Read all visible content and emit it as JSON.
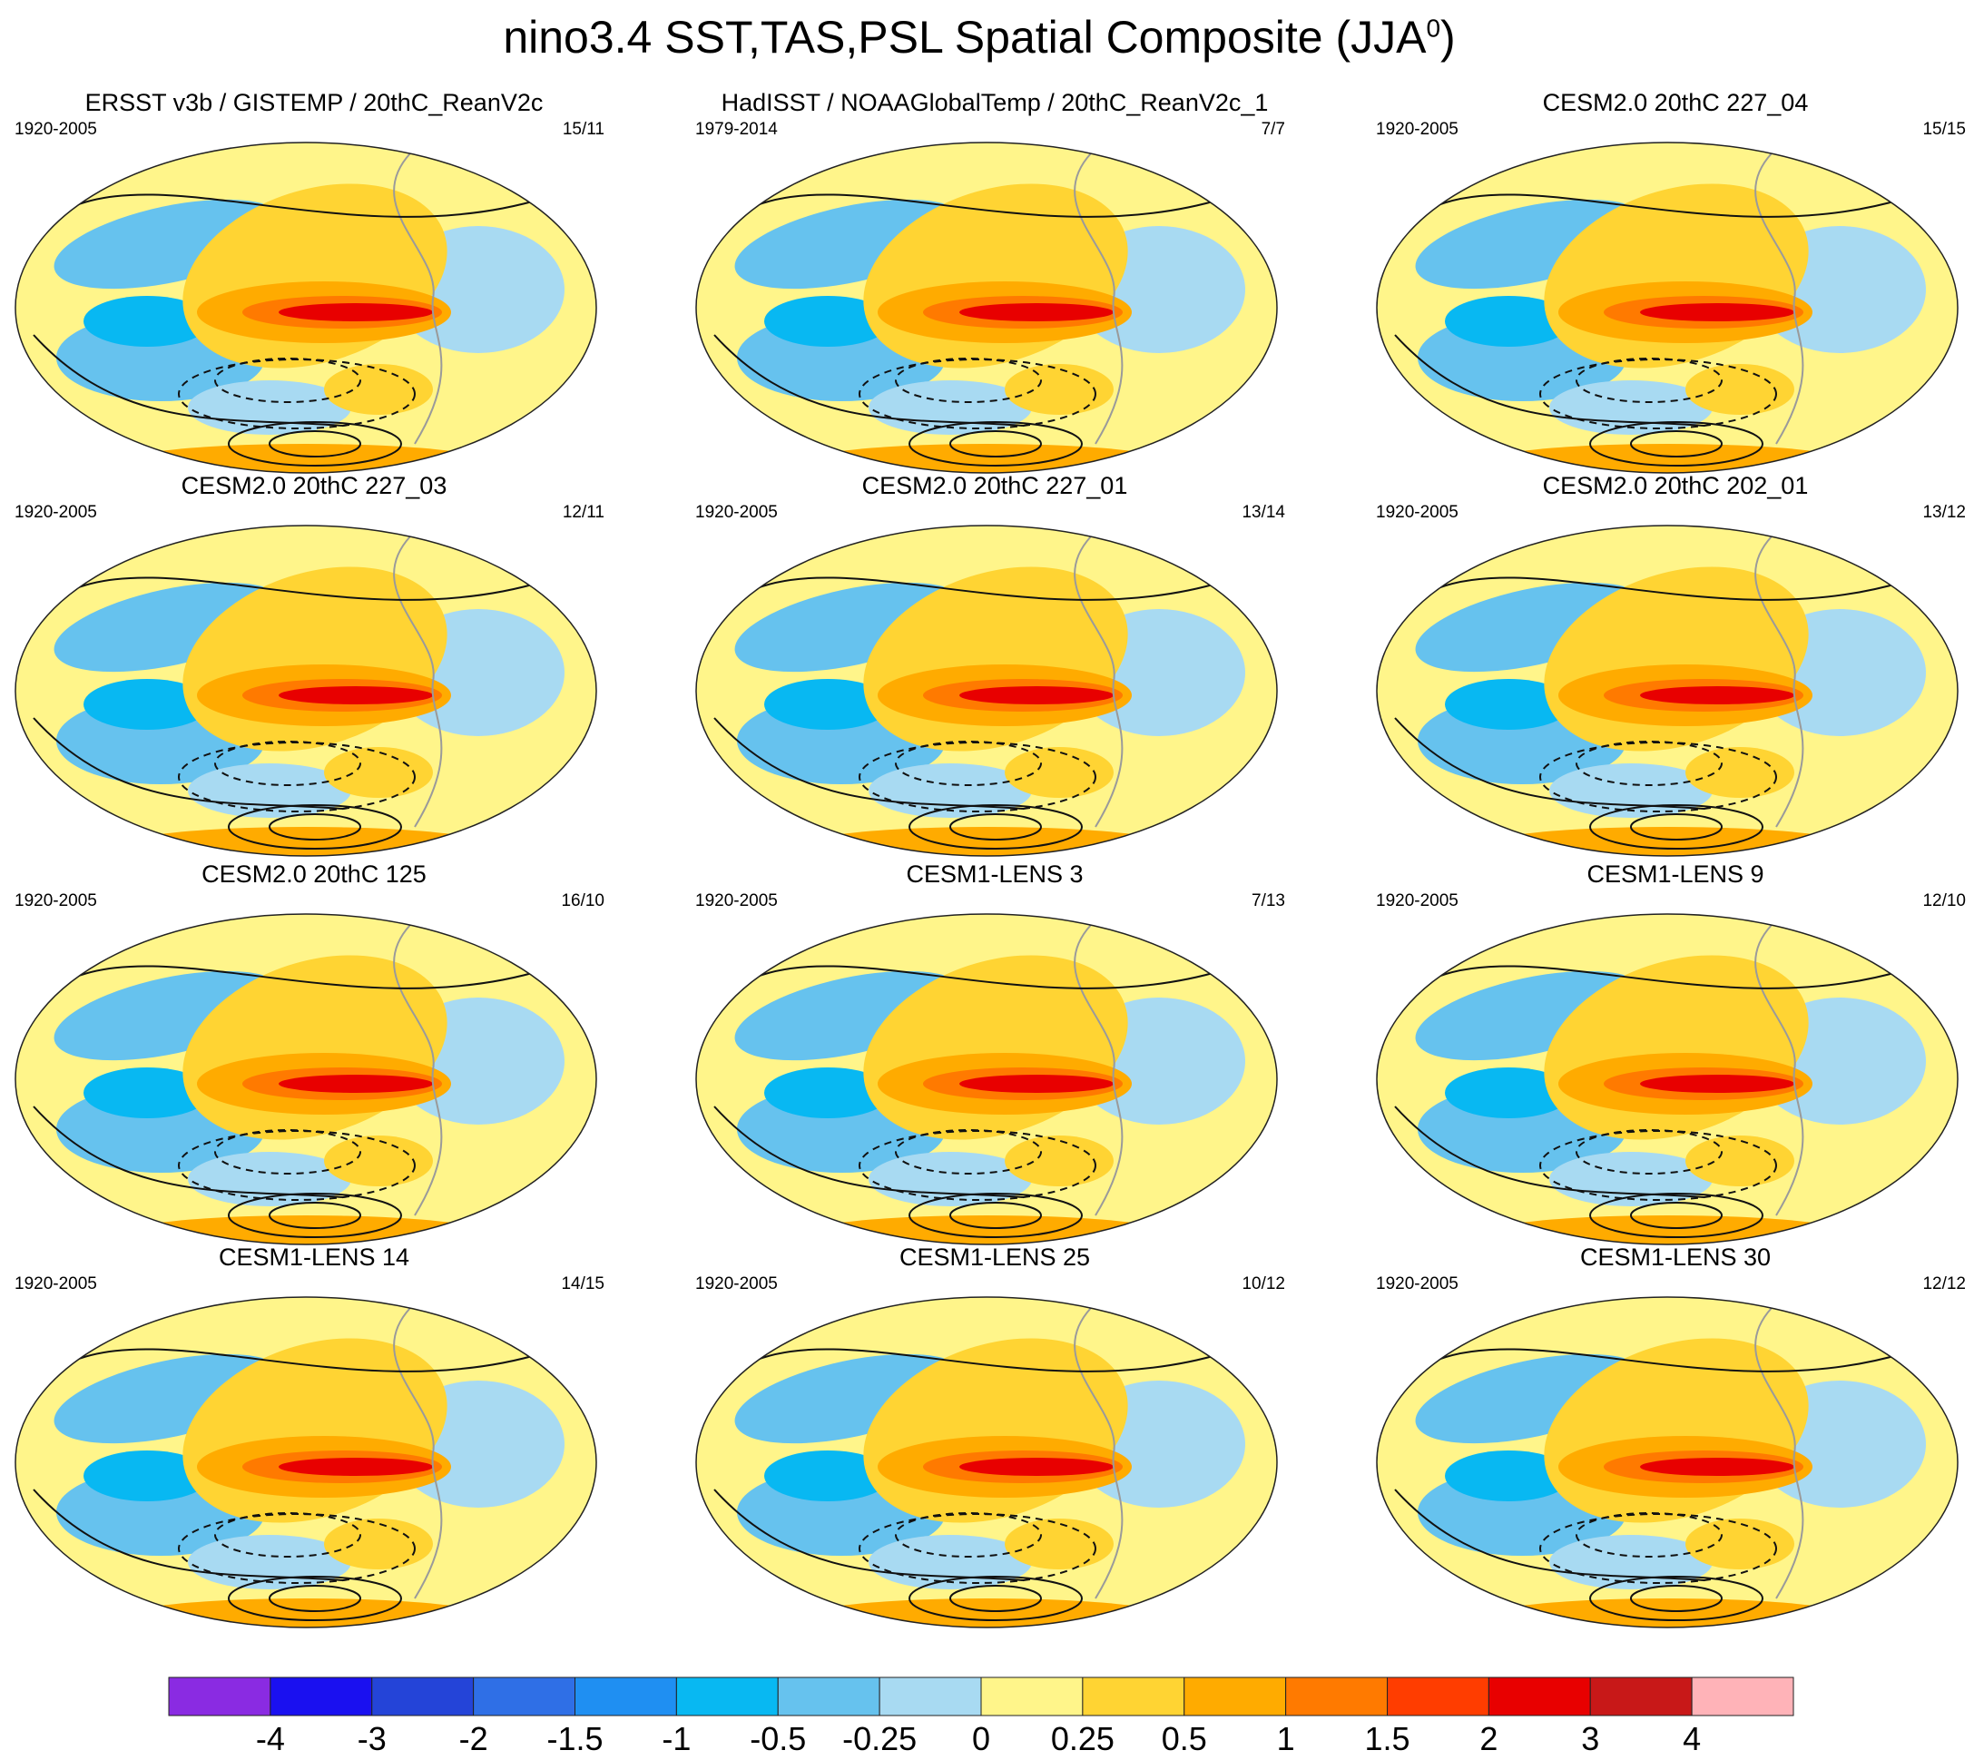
{
  "title": "nino3.4 SST,TAS,PSL Spatial Composite (JJA",
  "title_superscript": "0",
  "chart_data": {
    "type": "map-panels",
    "title": "nino3.4 SST,TAS,PSL Spatial Composite (JJA0)",
    "description_fields": "shaded: SST/TAS composite anomaly; contours: PSL (solid positive, dashed negative)",
    "panels": [
      {
        "title": "ERSST v3b / GISTEMP / 20thC_ReanV2c",
        "years": "1920-2005",
        "count": "15/11"
      },
      {
        "title": "HadISST / NOAAGlobalTemp / 20thC_ReanV2c_1",
        "years": "1979-2014",
        "count": "7/7"
      },
      {
        "title": "CESM2.0 20thC 227_04",
        "years": "1920-2005",
        "count": "15/15"
      },
      {
        "title": "CESM2.0 20thC 227_03",
        "years": "1920-2005",
        "count": "12/11"
      },
      {
        "title": "CESM2.0 20thC 227_01",
        "years": "1920-2005",
        "count": "13/14"
      },
      {
        "title": "CESM2.0 20thC 202_01",
        "years": "1920-2005",
        "count": "13/12"
      },
      {
        "title": "CESM2.0 20thC 125",
        "years": "1920-2005",
        "count": "16/10"
      },
      {
        "title": "CESM1-LENS 3",
        "years": "1920-2005",
        "count": "7/13"
      },
      {
        "title": "CESM1-LENS 9",
        "years": "1920-2005",
        "count": "12/10"
      },
      {
        "title": "CESM1-LENS 14",
        "years": "1920-2005",
        "count": "14/15"
      },
      {
        "title": "CESM1-LENS 25",
        "years": "1920-2005",
        "count": "10/12"
      },
      {
        "title": "CESM1-LENS 30",
        "years": "1920-2005",
        "count": "12/12"
      }
    ],
    "colorbar": {
      "labels": [
        "-4",
        "-3",
        "-2",
        "-1.5",
        "-1",
        "-0.5",
        "-0.25",
        "0",
        "0.25",
        "0.5",
        "1",
        "1.5",
        "2",
        "3",
        "4"
      ],
      "colors": [
        "#8a2be2",
        "#1a10f0",
        "#2444d8",
        "#2f6fe6",
        "#1f8ff2",
        "#08b8f2",
        "#66c2ee",
        "#a8daf2",
        "#fff58a",
        "#ffd433",
        "#ffab00",
        "#ff7a00",
        "#ff3d00",
        "#e80000",
        "#c81818",
        "#ffb3b8"
      ]
    }
  }
}
